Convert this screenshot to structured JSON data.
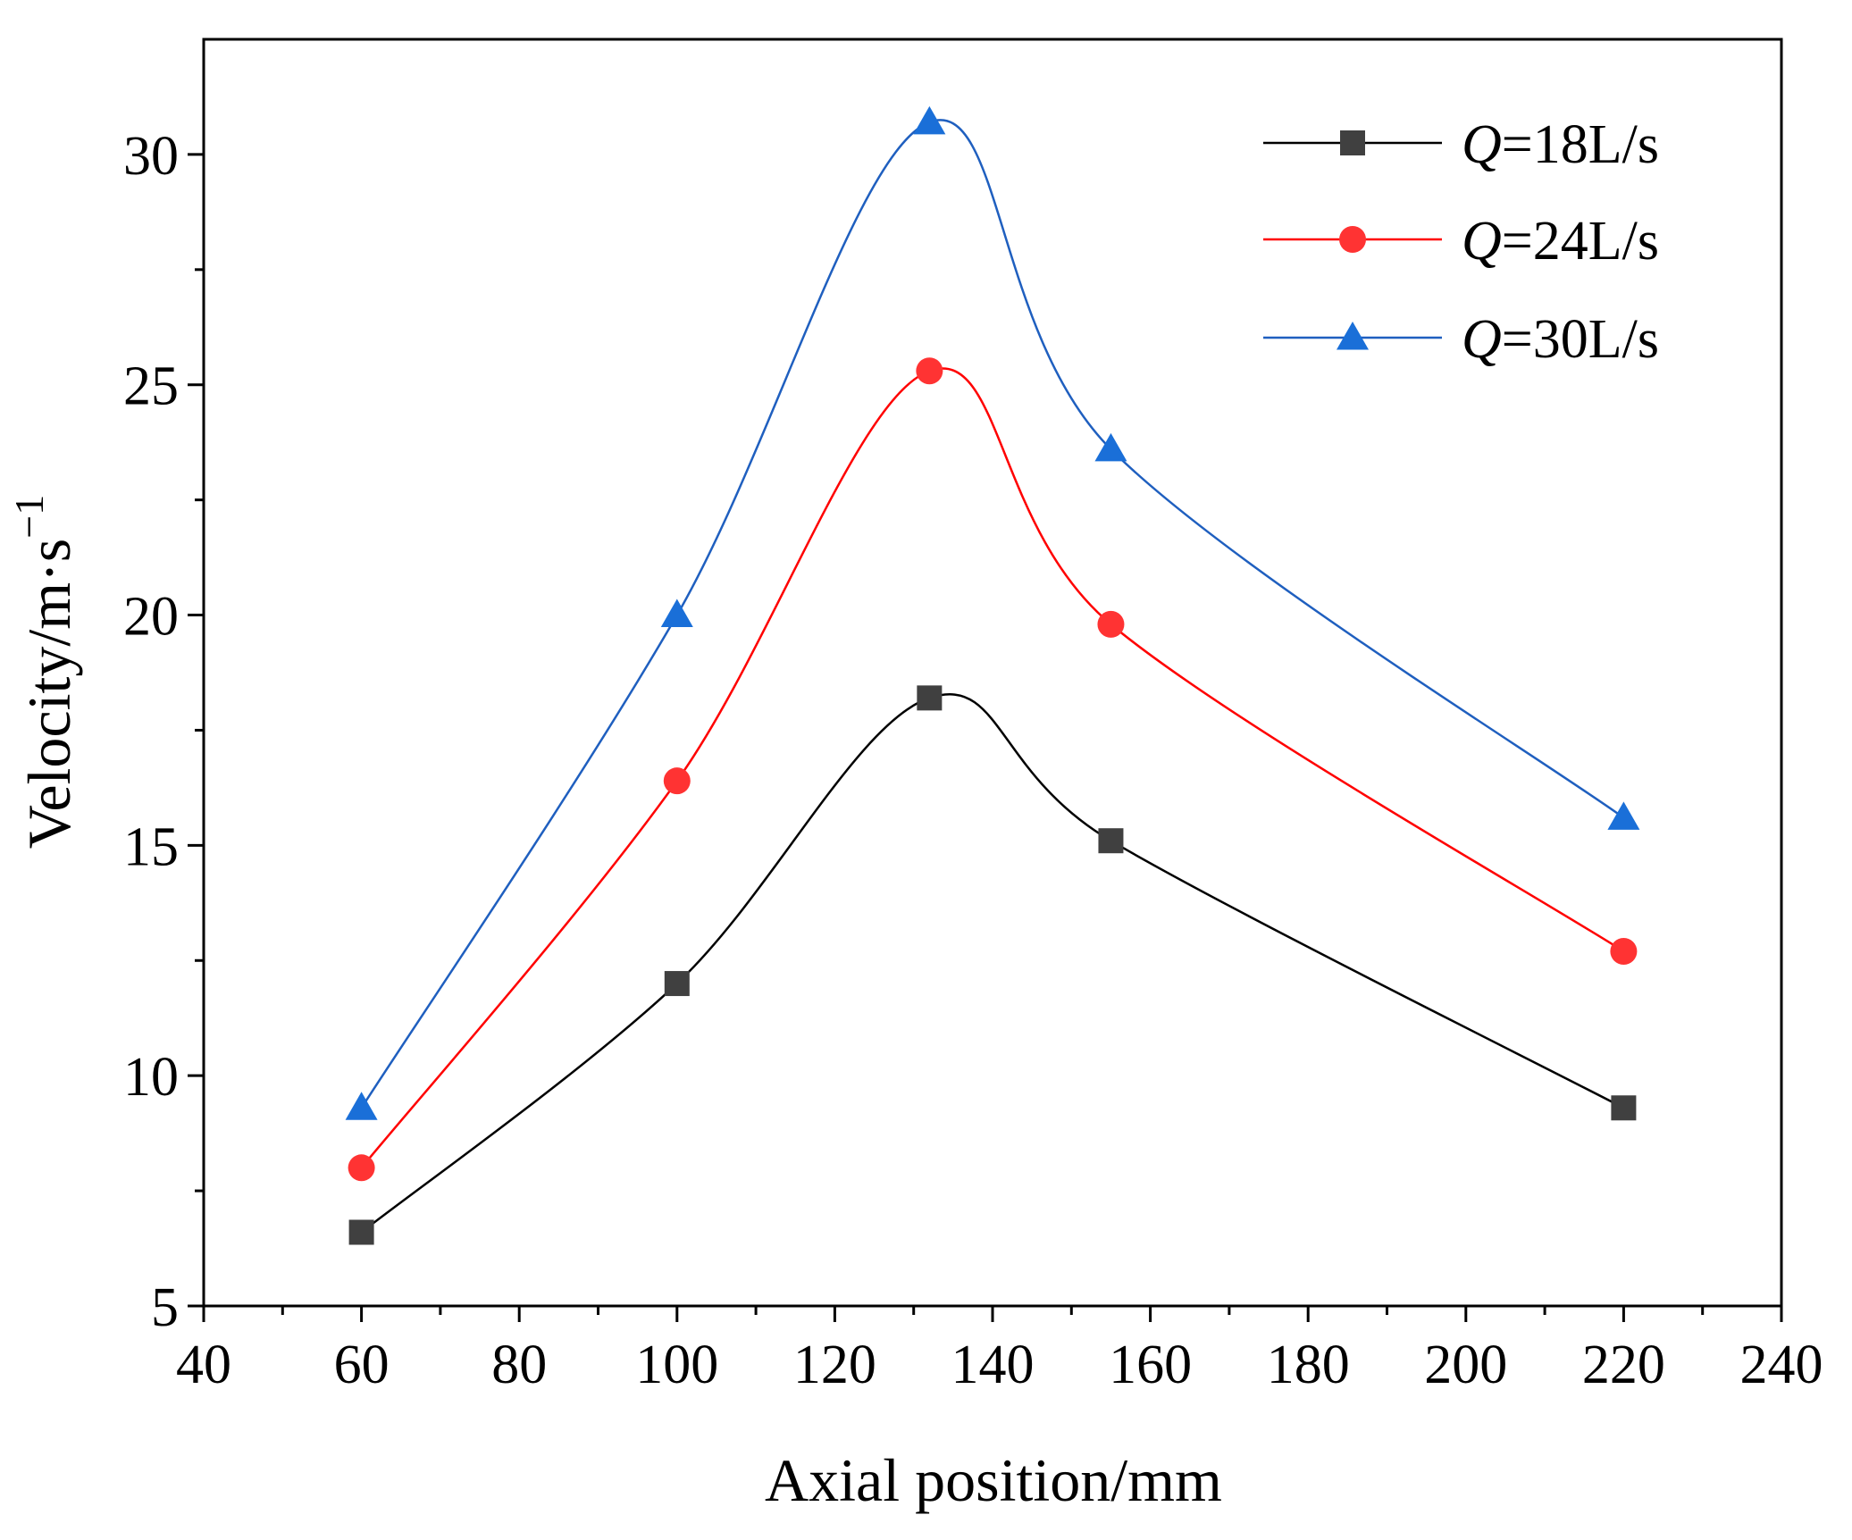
{
  "chart_data": {
    "type": "line",
    "title": "",
    "xlabel": "Axial position/mm",
    "ylabel_base": "Velocity/m·s",
    "ylabel_sup": "−1",
    "xlim": [
      40,
      240
    ],
    "ylim": [
      5,
      32.5
    ],
    "xticks": [
      40,
      60,
      80,
      100,
      120,
      140,
      160,
      180,
      200,
      220,
      240
    ],
    "yticks": [
      5,
      10,
      15,
      20,
      25,
      30
    ],
    "grid": false,
    "legend_position": "top-right",
    "x": [
      60,
      100,
      132,
      155,
      220
    ],
    "series": [
      {
        "name_var": "Q",
        "name_rest": "=18L/s",
        "marker": "square",
        "color": "#000000",
        "marker_color": "#404040",
        "values": [
          6.6,
          12.0,
          18.2,
          15.1,
          9.3
        ]
      },
      {
        "name_var": "Q",
        "name_rest": "=24L/s",
        "marker": "circle",
        "color": "#ff0000",
        "marker_color": "#ff3333",
        "values": [
          8.0,
          16.4,
          25.3,
          19.8,
          12.7
        ]
      },
      {
        "name_var": "Q",
        "name_rest": "=30L/s",
        "marker": "triangle",
        "color": "#1f5fbf",
        "marker_color": "#1a6fd8",
        "values": [
          9.3,
          20.0,
          30.7,
          23.6,
          15.6
        ]
      }
    ]
  }
}
